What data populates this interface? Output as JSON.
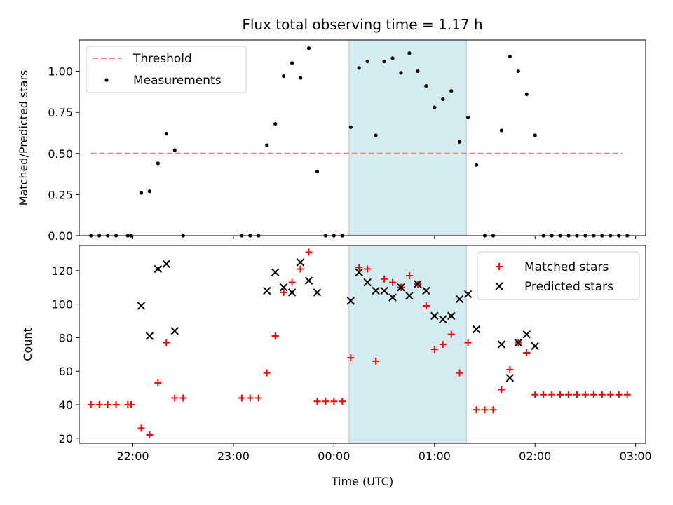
{
  "title": "Flux total observing time = 1.17 h",
  "chart_data": [
    {
      "type": "scatter",
      "name": "ratio-panel",
      "ylabel": "Matched/Predicted stars",
      "xlim": [
        "21:28",
        "03:06"
      ],
      "ylim": [
        0,
        1.19
      ],
      "yticks": [
        "0.00",
        "0.25",
        "0.50",
        "0.75",
        "1.00"
      ],
      "highlight_span": {
        "from": "00:09",
        "to": "01:19",
        "color": "#add8e6"
      },
      "threshold": {
        "label": "Threshold",
        "value": 0.5,
        "from": "21:35",
        "to": "02:52",
        "color": "#f08080",
        "style": "dashed"
      },
      "measurements": {
        "label": "Measurements",
        "color": "#000000",
        "points": [
          [
            "21:35",
            0
          ],
          [
            "21:40",
            0
          ],
          [
            "21:45",
            0
          ],
          [
            "21:50",
            0
          ],
          [
            "21:57",
            0
          ],
          [
            "21:59",
            0
          ],
          [
            "22:05",
            0.26
          ],
          [
            "22:10",
            0.27
          ],
          [
            "22:15",
            0.44
          ],
          [
            "22:20",
            0.62
          ],
          [
            "22:25",
            0.52
          ],
          [
            "22:30",
            0
          ],
          [
            "23:05",
            0
          ],
          [
            "23:10",
            0
          ],
          [
            "23:15",
            0
          ],
          [
            "23:20",
            0.55
          ],
          [
            "23:25",
            0.68
          ],
          [
            "23:30",
            0.97
          ],
          [
            "23:35",
            1.05
          ],
          [
            "23:40",
            0.96
          ],
          [
            "23:45",
            1.14
          ],
          [
            "23:50",
            0.39
          ],
          [
            "23:55",
            0
          ],
          [
            "00:00",
            0
          ],
          [
            "00:05",
            0
          ],
          [
            "00:10",
            0.66
          ],
          [
            "00:15",
            1.02
          ],
          [
            "00:20",
            1.06
          ],
          [
            "00:25",
            0.61
          ],
          [
            "00:30",
            1.06
          ],
          [
            "00:35",
            1.08
          ],
          [
            "00:40",
            0.99
          ],
          [
            "00:45",
            1.11
          ],
          [
            "00:50",
            1.0
          ],
          [
            "00:55",
            0.91
          ],
          [
            "01:00",
            0.78
          ],
          [
            "01:05",
            0.83
          ],
          [
            "01:10",
            0.88
          ],
          [
            "01:15",
            0.57
          ],
          [
            "01:20",
            0.72
          ],
          [
            "01:25",
            0.43
          ],
          [
            "01:30",
            0
          ],
          [
            "01:35",
            0
          ],
          [
            "01:40",
            0.64
          ],
          [
            "01:45",
            1.09
          ],
          [
            "01:50",
            1.0
          ],
          [
            "01:55",
            0.86
          ],
          [
            "02:00",
            0.61
          ],
          [
            "02:05",
            0
          ],
          [
            "02:10",
            0
          ],
          [
            "02:15",
            0
          ],
          [
            "02:20",
            0
          ],
          [
            "02:25",
            0
          ],
          [
            "02:30",
            0
          ],
          [
            "02:35",
            0
          ],
          [
            "02:40",
            0
          ],
          [
            "02:45",
            0
          ],
          [
            "02:50",
            0
          ],
          [
            "02:55",
            0
          ]
        ]
      },
      "legend": {
        "placement": "top-left",
        "entries": [
          "Threshold",
          "Measurements"
        ]
      }
    },
    {
      "type": "scatter",
      "name": "count-panel",
      "xlabel": "Time (UTC)",
      "ylabel": "Count",
      "xlim": [
        "21:28",
        "03:06"
      ],
      "ylim": [
        17,
        135
      ],
      "yticks": [
        "20",
        "40",
        "60",
        "80",
        "100",
        "120"
      ],
      "xticks": [
        "22:00",
        "23:00",
        "00:00",
        "01:00",
        "02:00",
        "03:00"
      ],
      "highlight_span": {
        "from": "00:09",
        "to": "01:19",
        "color": "#add8e6"
      },
      "series": [
        {
          "name": "Matched stars",
          "marker": "+",
          "color": "#ff0000",
          "points": [
            [
              "21:35",
              40
            ],
            [
              "21:40",
              40
            ],
            [
              "21:45",
              40
            ],
            [
              "21:50",
              40
            ],
            [
              "21:57",
              40
            ],
            [
              "21:59",
              40
            ],
            [
              "22:05",
              26
            ],
            [
              "22:10",
              22
            ],
            [
              "22:15",
              53
            ],
            [
              "22:20",
              77
            ],
            [
              "22:25",
              44
            ],
            [
              "22:30",
              44
            ],
            [
              "23:05",
              44
            ],
            [
              "23:10",
              44
            ],
            [
              "23:15",
              44
            ],
            [
              "23:20",
              59
            ],
            [
              "23:25",
              81
            ],
            [
              "23:30",
              107
            ],
            [
              "23:35",
              113
            ],
            [
              "23:40",
              121
            ],
            [
              "23:45",
              131
            ],
            [
              "23:50",
              42
            ],
            [
              "23:55",
              42
            ],
            [
              "00:00",
              42
            ],
            [
              "00:05",
              42
            ],
            [
              "00:10",
              68
            ],
            [
              "00:15",
              122
            ],
            [
              "00:20",
              121
            ],
            [
              "00:25",
              66
            ],
            [
              "00:30",
              115
            ],
            [
              "00:35",
              113
            ],
            [
              "00:40",
              110
            ],
            [
              "00:45",
              117
            ],
            [
              "00:50",
              112
            ],
            [
              "00:55",
              99
            ],
            [
              "01:00",
              73
            ],
            [
              "01:05",
              76
            ],
            [
              "01:10",
              82
            ],
            [
              "01:15",
              59
            ],
            [
              "01:20",
              77
            ],
            [
              "01:25",
              37
            ],
            [
              "01:30",
              37
            ],
            [
              "01:35",
              37
            ],
            [
              "01:40",
              49
            ],
            [
              "01:45",
              61
            ],
            [
              "01:50",
              77
            ],
            [
              "01:55",
              71
            ],
            [
              "02:00",
              46
            ],
            [
              "02:05",
              46
            ],
            [
              "02:10",
              46
            ],
            [
              "02:15",
              46
            ],
            [
              "02:20",
              46
            ],
            [
              "02:25",
              46
            ],
            [
              "02:30",
              46
            ],
            [
              "02:35",
              46
            ],
            [
              "02:40",
              46
            ],
            [
              "02:45",
              46
            ],
            [
              "02:50",
              46
            ],
            [
              "02:55",
              46
            ]
          ]
        },
        {
          "name": "Predicted stars",
          "marker": "x",
          "color": "#000000",
          "points": [
            [
              "22:05",
              99
            ],
            [
              "22:10",
              81
            ],
            [
              "22:15",
              121
            ],
            [
              "22:20",
              124
            ],
            [
              "22:25",
              84
            ],
            [
              "23:20",
              108
            ],
            [
              "23:25",
              119
            ],
            [
              "23:30",
              110
            ],
            [
              "23:35",
              107
            ],
            [
              "23:40",
              125
            ],
            [
              "23:45",
              114
            ],
            [
              "23:50",
              107
            ],
            [
              "00:10",
              102
            ],
            [
              "00:15",
              119
            ],
            [
              "00:20",
              113
            ],
            [
              "00:25",
              108
            ],
            [
              "00:30",
              108
            ],
            [
              "00:35",
              104
            ],
            [
              "00:40",
              110
            ],
            [
              "00:45",
              105
            ],
            [
              "00:50",
              112
            ],
            [
              "00:55",
              108
            ],
            [
              "01:00",
              93
            ],
            [
              "01:05",
              91
            ],
            [
              "01:10",
              93
            ],
            [
              "01:15",
              103
            ],
            [
              "01:20",
              106
            ],
            [
              "01:25",
              85
            ],
            [
              "01:40",
              76
            ],
            [
              "01:45",
              56
            ],
            [
              "01:50",
              77
            ],
            [
              "01:55",
              82
            ],
            [
              "02:00",
              75
            ]
          ]
        }
      ],
      "legend": {
        "placement": "top-right",
        "entries": [
          "Matched stars",
          "Predicted stars"
        ]
      }
    }
  ]
}
